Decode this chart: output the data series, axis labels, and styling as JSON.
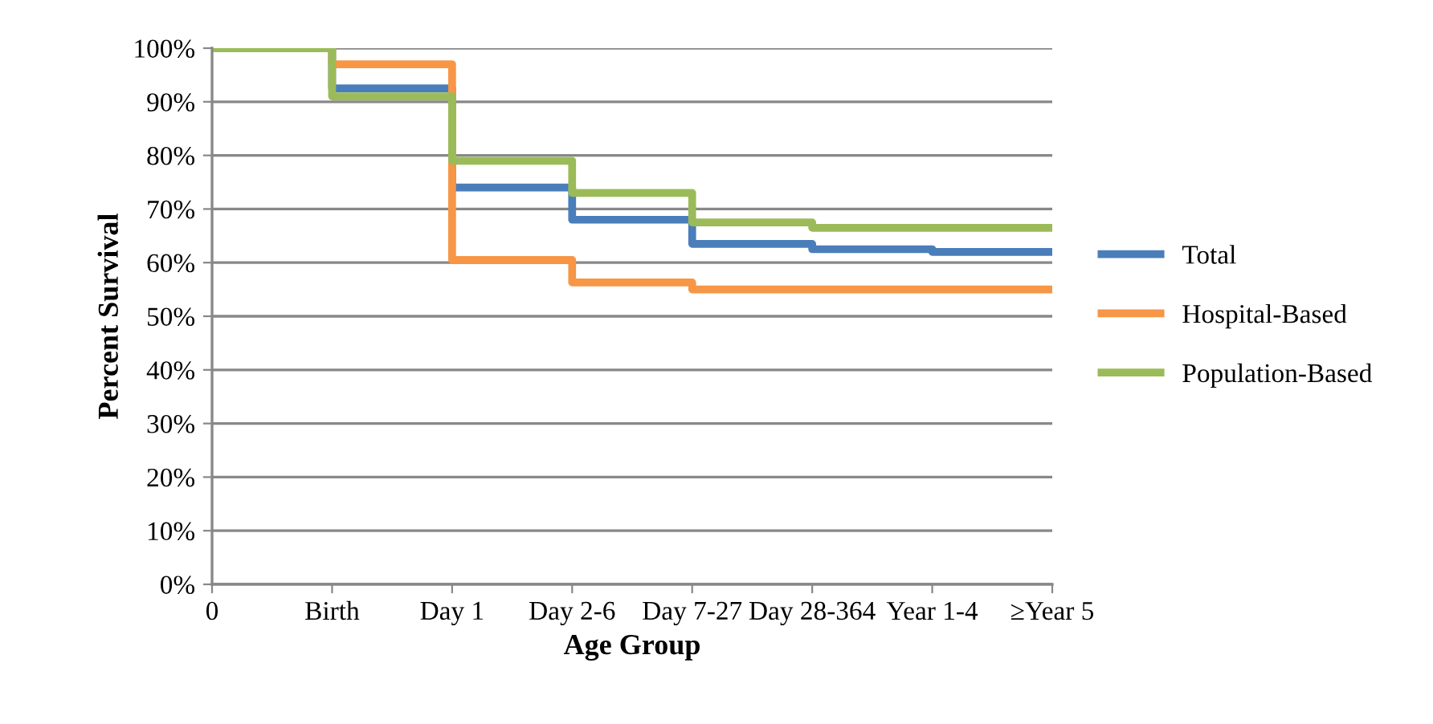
{
  "chart_data": {
    "type": "step",
    "xlabel": "Age Group",
    "ylabel": "Percent Survival",
    "categories": [
      "0",
      "Birth",
      "Day 1",
      "Day 2-6",
      "Day 7-27",
      "Day 28-364",
      "Year 1-4",
      "≥Year 5"
    ],
    "series": [
      {
        "name": "Total",
        "color": "#4a7ebb",
        "values": [
          100,
          92.5,
          74,
          68,
          63.5,
          62.5,
          62,
          62
        ]
      },
      {
        "name": "Hospital-Based",
        "color": "#f79646",
        "values": [
          100,
          97,
          60.5,
          56.3,
          55,
          55,
          55,
          55
        ]
      },
      {
        "name": "Population-Based",
        "color": "#9bbb59",
        "values": [
          100,
          91,
          79,
          73,
          67.5,
          66.5,
          66.5,
          66.5
        ]
      }
    ],
    "ylim": [
      0,
      100
    ],
    "yticks": [
      {
        "value": 0,
        "label": "0%"
      },
      {
        "value": 10,
        "label": "10%"
      },
      {
        "value": 20,
        "label": "20%"
      },
      {
        "value": 30,
        "label": "30%"
      },
      {
        "value": 40,
        "label": "40%"
      },
      {
        "value": 50,
        "label": "50%"
      },
      {
        "value": 60,
        "label": "60%"
      },
      {
        "value": 70,
        "label": "70%"
      },
      {
        "value": 80,
        "label": "80%"
      },
      {
        "value": 90,
        "label": "90%"
      },
      {
        "value": 100,
        "label": "100%"
      }
    ],
    "grid": "y",
    "legend": "right"
  }
}
